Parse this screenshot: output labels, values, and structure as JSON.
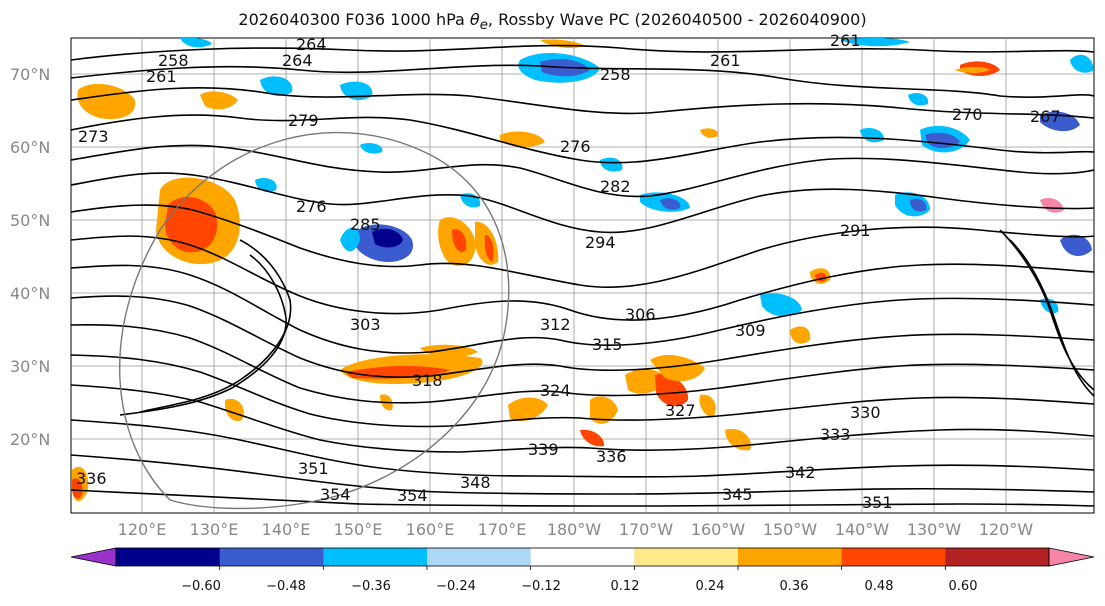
{
  "title_prefix": "2026040300 F036 1000 hPa ",
  "title_theta": "θ",
  "title_sub": "e",
  "title_suffix": ", Rossby Wave PC (2026040500 - 2026040900)",
  "lat_ticks": [
    "70°N",
    "60°N",
    "50°N",
    "40°N",
    "30°N",
    "20°N"
  ],
  "lon_ticks": [
    "120°E",
    "130°E",
    "140°E",
    "150°E",
    "160°E",
    "170°E",
    "180°W",
    "170°W",
    "160°W",
    "150°W",
    "140°W",
    "130°W",
    "120°W"
  ],
  "colorbar": {
    "colors": [
      "#9932cc",
      "#00008b",
      "#3a5ccf",
      "#00bfff",
      "#add8f5",
      "#ffffff",
      "#ffe98a",
      "#ffa500",
      "#ff4500",
      "#b22222",
      "#f686a8"
    ],
    "tick_labels": [
      "−0.60",
      "−0.48",
      "−0.36",
      "−0.24",
      "−0.12",
      "0.12",
      "0.24",
      "0.36",
      "0.48",
      "0.60"
    ]
  },
  "contour_labels": [
    "264",
    "258",
    "261",
    "273",
    "279",
    "276",
    "285",
    "282",
    "294",
    "291",
    "276",
    "258",
    "261",
    "261",
    "270",
    "264",
    "267",
    "303",
    "306",
    "312",
    "315",
    "309",
    "318",
    "324",
    "327",
    "330",
    "333",
    "339",
    "336",
    "342",
    "345",
    "348",
    "351",
    "351",
    "354",
    "354",
    "336"
  ]
}
